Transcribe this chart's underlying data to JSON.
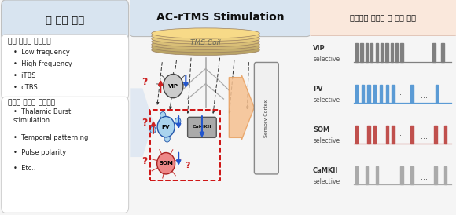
{
  "title_left": "뇌 자극 기법",
  "title_center": "AC-rTMS Stimulation",
  "title_right": "신경세포 선별적 뇌 자극 기법",
  "section1_title": "기존 뇌자극 프로토콜",
  "section1_items": [
    "Low frequency",
    "High frequency",
    "iTBS",
    "cTBS"
  ],
  "section2_title": "새로운 뇌자극 프로토콜",
  "section2_items": [
    "Thalamic Burst\nstimulation",
    "Temporal patterning",
    "Pulse polarity",
    "Etc.."
  ],
  "tms_coil_label": "TMS Coil",
  "sensory_cortex_label": "Sensory Cortex",
  "right_rows": [
    {
      "label1": "VIP",
      "label2": "selective",
      "color": "#808080",
      "group1": 10,
      "gap1_text": "",
      "group2": 0,
      "gap2_text": "...",
      "group3": 2
    },
    {
      "label1": "PV",
      "label2": "selective",
      "color": "#5B9BD5",
      "group1": 7,
      "gap1_text": "··",
      "group2": 1,
      "gap2_text": "...",
      "group3": 1
    },
    {
      "label1": "SOM",
      "label2": "selective",
      "color": "#C0504D",
      "group1_pattern": [
        1,
        0,
        1,
        1,
        0,
        1,
        1
      ],
      "gap1_text": "··",
      "group2": 1,
      "gap2_text": "...",
      "group3": 2
    },
    {
      "label1": "CaMKII",
      "label2": "selective",
      "color": "#AAAAAA",
      "group1": 3,
      "gap1_text": "··",
      "group2": 2,
      "gap2_text": "...",
      "group3": 2
    }
  ],
  "bg_left_color": "#EBF0F8",
  "bg_right_color": "#FDF4EE",
  "left_title_box_color": "#D8E4F0",
  "right_title_box_color": "#FAE8DC"
}
